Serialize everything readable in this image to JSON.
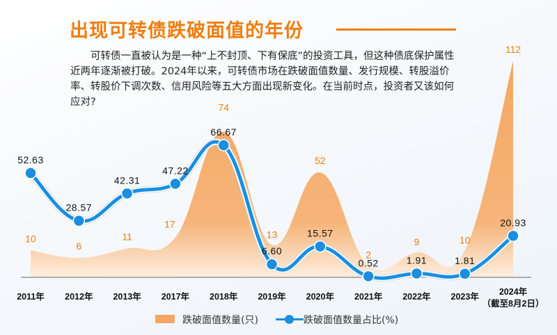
{
  "title": "出现可转债跌破面值的年份",
  "intro": "可转债一直被认为是一种“上不封顶、下有保底”的投资工具，但这种债底保护属性近两年逐渐被打破。2024年以来，可转债市场在跌破面值数量、发行规模、转股溢价率、转股价下调次数、信用风险等五大方面出现新变化。在当前时点，投资者又该如何应对?",
  "colors": {
    "accent": "#ef7d0d",
    "area": "#f4a662",
    "line": "#1a8fe0"
  },
  "chart_data": {
    "type": "line",
    "title": "出现可转债跌破面值的年份",
    "categories": [
      "2011年",
      "2012年",
      "2013年",
      "2017年",
      "2018年",
      "2019年",
      "2020年",
      "2021年",
      "2022年",
      "2023年",
      "2024年"
    ],
    "category_notes": {
      "2024年": "（截至8月2日）"
    },
    "series": [
      {
        "name": "跌破面值数量(只)",
        "type": "area",
        "values": [
          10,
          6,
          11,
          17,
          74,
          13,
          52,
          2,
          9,
          10,
          112
        ]
      },
      {
        "name": "跌破面值数量占比(%)",
        "type": "line",
        "values": [
          52.63,
          28.57,
          42.31,
          47.22,
          66.67,
          6.6,
          15.57,
          0.52,
          1.91,
          1.81,
          20.93
        ]
      }
    ],
    "value_labels": {
      "count": [
        "10",
        "6",
        "11",
        "17",
        "74",
        "13",
        "52",
        "2",
        "9",
        "10",
        "112"
      ],
      "ratio": [
        "52.63",
        "28.57",
        "42.31",
        "47.22",
        "66.67",
        "6.60",
        "15.57",
        "0.52",
        "1.91",
        "1.81",
        "20.93"
      ]
    },
    "legend": [
      "跌破面值数量(只)",
      "跌破面值数量占比(%)"
    ],
    "legend_position": "bottom",
    "grid": false
  }
}
